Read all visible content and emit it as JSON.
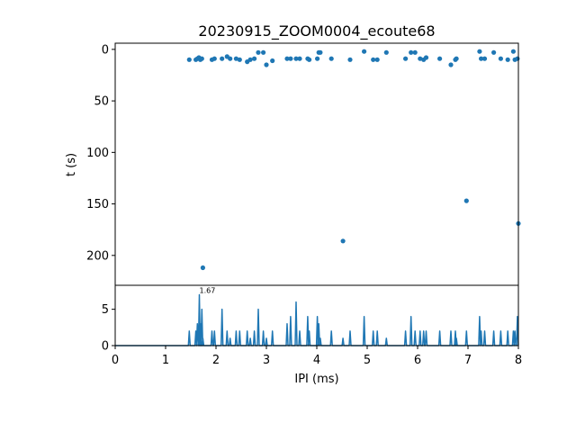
{
  "chart_data": [
    {
      "type": "scatter",
      "title": "20230915_ZOOM0004_ecoute68",
      "ylabel": "t (s)",
      "xlim": [
        0,
        8
      ],
      "ylim": [
        229,
        -6
      ],
      "y_inverted": true,
      "yticks": [
        "0",
        "50",
        "100",
        "150",
        "200"
      ],
      "color": "#1f77b4",
      "points": [
        {
          "x": 1.47,
          "y": 10
        },
        {
          "x": 1.6,
          "y": 10
        },
        {
          "x": 1.63,
          "y": 9
        },
        {
          "x": 1.66,
          "y": 8
        },
        {
          "x": 1.69,
          "y": 10
        },
        {
          "x": 1.72,
          "y": 9
        },
        {
          "x": 1.74,
          "y": 212
        },
        {
          "x": 1.92,
          "y": 10
        },
        {
          "x": 1.97,
          "y": 9
        },
        {
          "x": 2.12,
          "y": 9
        },
        {
          "x": 2.22,
          "y": 7
        },
        {
          "x": 2.28,
          "y": 9
        },
        {
          "x": 2.4,
          "y": 9
        },
        {
          "x": 2.47,
          "y": 10
        },
        {
          "x": 2.62,
          "y": 12
        },
        {
          "x": 2.68,
          "y": 10
        },
        {
          "x": 2.76,
          "y": 9
        },
        {
          "x": 2.84,
          "y": 3
        },
        {
          "x": 2.94,
          "y": 3
        },
        {
          "x": 3.0,
          "y": 15
        },
        {
          "x": 3.12,
          "y": 11
        },
        {
          "x": 3.41,
          "y": 9
        },
        {
          "x": 3.48,
          "y": 9
        },
        {
          "x": 3.59,
          "y": 9
        },
        {
          "x": 3.66,
          "y": 9
        },
        {
          "x": 3.82,
          "y": 9
        },
        {
          "x": 3.85,
          "y": 10
        },
        {
          "x": 4.01,
          "y": 9
        },
        {
          "x": 4.04,
          "y": 3
        },
        {
          "x": 4.07,
          "y": 3
        },
        {
          "x": 4.29,
          "y": 9
        },
        {
          "x": 4.52,
          "y": 186
        },
        {
          "x": 4.66,
          "y": 10
        },
        {
          "x": 4.94,
          "y": 2
        },
        {
          "x": 5.12,
          "y": 10
        },
        {
          "x": 5.2,
          "y": 10
        },
        {
          "x": 5.38,
          "y": 3
        },
        {
          "x": 5.76,
          "y": 9
        },
        {
          "x": 5.87,
          "y": 3
        },
        {
          "x": 5.95,
          "y": 3
        },
        {
          "x": 6.05,
          "y": 9
        },
        {
          "x": 6.12,
          "y": 10
        },
        {
          "x": 6.17,
          "y": 8
        },
        {
          "x": 6.44,
          "y": 9
        },
        {
          "x": 6.66,
          "y": 15
        },
        {
          "x": 6.75,
          "y": 10
        },
        {
          "x": 6.77,
          "y": 9
        },
        {
          "x": 6.97,
          "y": 147
        },
        {
          "x": 7.23,
          "y": 2
        },
        {
          "x": 7.26,
          "y": 9
        },
        {
          "x": 7.33,
          "y": 9
        },
        {
          "x": 7.51,
          "y": 3
        },
        {
          "x": 7.65,
          "y": 9
        },
        {
          "x": 7.79,
          "y": 10
        },
        {
          "x": 7.9,
          "y": 2
        },
        {
          "x": 7.93,
          "y": 10
        },
        {
          "x": 7.98,
          "y": 9
        },
        {
          "x": 8.0,
          "y": 169
        }
      ]
    },
    {
      "type": "line",
      "xlabel": "IPI (ms)",
      "xlim": [
        0,
        8
      ],
      "ylim": [
        0,
        8.3
      ],
      "xticks": [
        "0",
        "1",
        "2",
        "3",
        "4",
        "5",
        "6",
        "7",
        "8"
      ],
      "yticks": [
        "0",
        "5"
      ],
      "color": "#1f77b4",
      "peak_annotation": {
        "x": 1.67,
        "y": 7.1,
        "text": "1.67"
      },
      "peaks": [
        [
          1.47,
          2
        ],
        [
          1.6,
          2
        ],
        [
          1.63,
          3
        ],
        [
          1.67,
          7
        ],
        [
          1.69,
          3
        ],
        [
          1.72,
          5
        ],
        [
          1.74,
          1
        ],
        [
          1.92,
          2
        ],
        [
          1.97,
          2
        ],
        [
          2.12,
          5
        ],
        [
          2.22,
          2
        ],
        [
          2.28,
          1
        ],
        [
          2.4,
          2
        ],
        [
          2.47,
          2
        ],
        [
          2.62,
          2
        ],
        [
          2.68,
          1
        ],
        [
          2.76,
          2
        ],
        [
          2.84,
          5
        ],
        [
          2.94,
          2
        ],
        [
          3.0,
          1
        ],
        [
          3.12,
          2
        ],
        [
          3.41,
          3
        ],
        [
          3.48,
          4
        ],
        [
          3.59,
          6
        ],
        [
          3.66,
          2
        ],
        [
          3.82,
          4
        ],
        [
          3.85,
          2
        ],
        [
          4.01,
          4
        ],
        [
          4.04,
          3
        ],
        [
          4.07,
          1
        ],
        [
          4.29,
          2
        ],
        [
          4.52,
          1
        ],
        [
          4.66,
          2
        ],
        [
          4.94,
          4
        ],
        [
          5.12,
          2
        ],
        [
          5.2,
          2
        ],
        [
          5.38,
          1
        ],
        [
          5.76,
          2
        ],
        [
          5.87,
          4
        ],
        [
          5.95,
          2
        ],
        [
          6.05,
          2
        ],
        [
          6.12,
          2
        ],
        [
          6.17,
          2
        ],
        [
          6.44,
          2
        ],
        [
          6.66,
          2
        ],
        [
          6.75,
          2
        ],
        [
          6.77,
          1
        ],
        [
          6.97,
          2
        ],
        [
          7.23,
          4
        ],
        [
          7.26,
          2
        ],
        [
          7.33,
          2
        ],
        [
          7.51,
          2
        ],
        [
          7.65,
          2
        ],
        [
          7.79,
          2
        ],
        [
          7.9,
          2
        ],
        [
          7.93,
          2
        ],
        [
          7.98,
          4
        ]
      ]
    }
  ]
}
